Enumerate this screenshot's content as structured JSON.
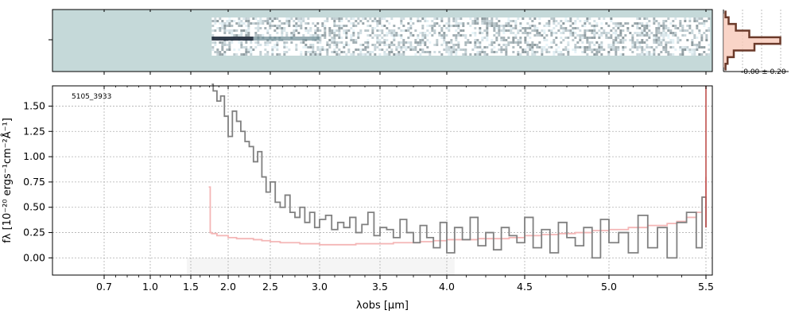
{
  "chart_data": {
    "type": "line",
    "id_label": "5105_3933",
    "xlabel": "λobs [μm]",
    "ylabel": "fλ [10⁻²⁰ ergs⁻¹cm⁻²Å⁻¹]",
    "x_tick_labels": [
      "0.7",
      "1.0",
      "1.5",
      "2.0",
      "2.5",
      "3.0",
      "3.5",
      "4.0",
      "4.5",
      "5.0",
      "5.5"
    ],
    "x_tick_values": [
      0.7,
      1.0,
      1.5,
      2.0,
      2.5,
      3.0,
      3.5,
      4.0,
      4.5,
      5.0,
      5.5
    ],
    "y_tick_labels": [
      "0.00",
      "0.25",
      "0.50",
      "0.75",
      "1.00",
      "1.25",
      "1.50"
    ],
    "y_tick_values": [
      0.0,
      0.25,
      0.5,
      0.75,
      1.0,
      1.25,
      1.5
    ],
    "ylim": [
      -0.17,
      1.7
    ],
    "grid": true,
    "profile_annotation": "-0.00 ± 0.20",
    "colors": {
      "flux": "#808080",
      "error": "#f4b6b6",
      "spike": "#c0504d",
      "image_bg": "#c5d9d9",
      "profile": "#6b3a2a",
      "profile_fill": "#f7c9b9",
      "mask": "#eeeeee"
    },
    "series": [
      {
        "key": "flux",
        "x": [
          1.78,
          1.8,
          1.85,
          1.9,
          1.95,
          2.0,
          2.05,
          2.1,
          2.15,
          2.2,
          2.25,
          2.3,
          2.35,
          2.4,
          2.45,
          2.5,
          2.55,
          2.6,
          2.65,
          2.7,
          2.75,
          2.8,
          2.85,
          2.9,
          2.95,
          3.0,
          3.05,
          3.1,
          3.15,
          3.2,
          3.25,
          3.3,
          3.35,
          3.4,
          3.45,
          3.5,
          3.55,
          3.6,
          3.65,
          3.7,
          3.75,
          3.8,
          3.85,
          3.9,
          3.95,
          4.0,
          4.05,
          4.1,
          4.15,
          4.2,
          4.25,
          4.3,
          4.35,
          4.4,
          4.45,
          4.5,
          4.55,
          4.6,
          4.65,
          4.7,
          4.75,
          4.8,
          4.85,
          4.9,
          4.95,
          5.0,
          5.05,
          5.1,
          5.15,
          5.2,
          5.25,
          5.3,
          5.35,
          5.4,
          5.45,
          5.48,
          5.5
        ],
        "y": [
          1.8,
          1.65,
          1.55,
          1.6,
          1.4,
          1.2,
          1.45,
          1.35,
          1.25,
          1.15,
          1.1,
          0.95,
          1.05,
          0.8,
          0.65,
          0.75,
          0.55,
          0.5,
          0.62,
          0.45,
          0.4,
          0.5,
          0.35,
          0.45,
          0.3,
          0.38,
          0.42,
          0.28,
          0.35,
          0.3,
          0.4,
          0.25,
          0.33,
          0.45,
          0.22,
          0.3,
          0.28,
          0.2,
          0.38,
          0.25,
          0.15,
          0.32,
          0.2,
          0.1,
          0.35,
          0.05,
          0.3,
          0.18,
          0.4,
          0.12,
          0.25,
          0.08,
          0.3,
          0.22,
          0.15,
          0.4,
          0.1,
          0.28,
          0.05,
          0.35,
          0.2,
          0.12,
          0.3,
          0.0,
          0.38,
          0.15,
          0.25,
          0.05,
          0.42,
          0.1,
          0.3,
          0.0,
          0.35,
          0.45,
          0.1,
          0.6,
          0.3
        ]
      },
      {
        "key": "error",
        "x": [
          1.74,
          1.76,
          1.78,
          1.85,
          1.9,
          2.0,
          2.1,
          2.2,
          2.3,
          2.4,
          2.5,
          2.6,
          2.7,
          2.8,
          2.9,
          3.0,
          3.1,
          3.2,
          3.3,
          3.4,
          3.5,
          3.6,
          3.7,
          3.8,
          3.9,
          4.0,
          4.1,
          4.2,
          4.3,
          4.4,
          4.5,
          4.6,
          4.7,
          4.8,
          4.9,
          5.0,
          5.1,
          5.2,
          5.3,
          5.35,
          5.4,
          5.45,
          5.48,
          5.5
        ],
        "y": [
          0.7,
          0.25,
          0.24,
          0.22,
          0.22,
          0.2,
          0.19,
          0.19,
          0.18,
          0.17,
          0.16,
          0.15,
          0.15,
          0.14,
          0.14,
          0.13,
          0.13,
          0.13,
          0.14,
          0.14,
          0.14,
          0.15,
          0.15,
          0.16,
          0.17,
          0.18,
          0.18,
          0.19,
          0.19,
          0.2,
          0.22,
          0.23,
          0.24,
          0.25,
          0.27,
          0.28,
          0.3,
          0.32,
          0.34,
          0.36,
          0.4,
          0.45,
          0.6,
          0.8
        ]
      }
    ],
    "spike_x": 5.5,
    "mask_from": 1.45,
    "mask_to": 4.05,
    "profile": {
      "y": [
        -0.6,
        -0.45,
        -0.3,
        -0.15,
        0.0,
        0.15,
        0.3,
        0.45,
        0.6
      ],
      "v": [
        0.02,
        0.05,
        0.12,
        0.25,
        0.55,
        0.3,
        0.1,
        0.04,
        0.02
      ]
    }
  }
}
